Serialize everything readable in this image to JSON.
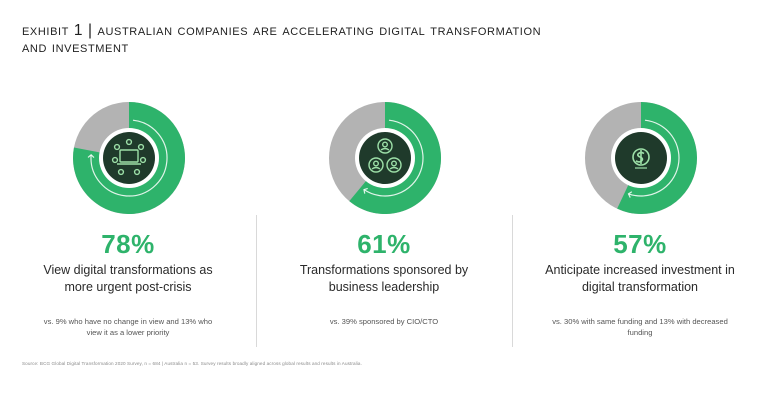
{
  "title": {
    "line1": "Exhibit 1 | Australian companies are accelerating digital transformation",
    "line2": "And investment"
  },
  "chart_data": [
    {
      "type": "pie",
      "values": [
        78,
        22
      ],
      "data_label": "78%",
      "caption": "View digital transformations as more urgent post-crisis",
      "note": "vs. 9% who have no change in view and 13% who view it as a lower priority",
      "icon": "laptop-network-icon"
    },
    {
      "type": "pie",
      "values": [
        61,
        39
      ],
      "data_label": "61%",
      "caption": "Transformations sponsored by business leadership",
      "note": "vs. 39% sponsored by CIO/CTO",
      "icon": "people-group-icon"
    },
    {
      "type": "pie",
      "values": [
        57,
        43
      ],
      "data_label": "57%",
      "caption": "Anticipate increased investment in digital transformation",
      "note": "vs. 30% with same funding and 13% with decreased funding",
      "icon": "dollar-coin-icon"
    }
  ],
  "colors": {
    "green": "#2eb36b",
    "gray": "#b3b3b3",
    "center": "#1f3a2b",
    "text_green": "#2eb36b"
  },
  "source": "Source: BCG Global Digital Transformation 2020 Survey, n = 684 | Australia n = 53. Survey results broadly aligned across global results and results in Australia."
}
